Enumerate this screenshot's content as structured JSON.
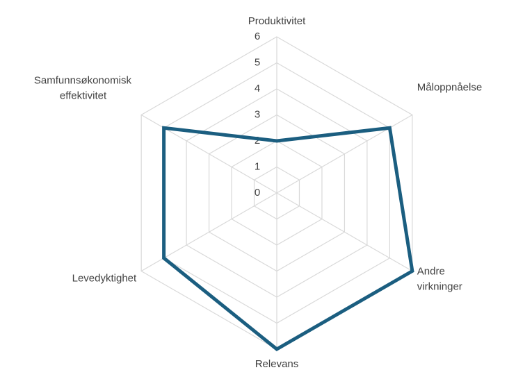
{
  "chart_data": {
    "type": "radar",
    "categories": [
      "Produktivitet",
      "Måloppnåelse",
      "Andre virkninger",
      "Relevans",
      "Levedyktighet",
      "Samfunnsøkonomisk effektivitet"
    ],
    "series": [
      {
        "color": "#1b5e80",
        "values": [
          2,
          5,
          6,
          6,
          5,
          5
        ]
      }
    ],
    "ylim": [
      0,
      6
    ],
    "yticks": [
      0,
      1,
      2,
      3,
      4,
      5,
      6
    ],
    "grid": true
  }
}
